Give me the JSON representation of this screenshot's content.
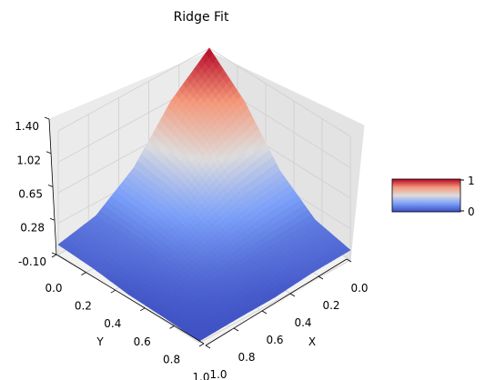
{
  "chart_data": {
    "type": "surface",
    "title": "Ridge Fit",
    "xlabel": "X",
    "ylabel": "Y",
    "zlabel": "",
    "xlim": [
      0.0,
      1.0
    ],
    "ylim": [
      0.0,
      1.0
    ],
    "zlim": [
      -0.1,
      1.4
    ],
    "x_ticks": [
      "0.0",
      "0.2",
      "0.4",
      "0.6",
      "0.8",
      "1.0"
    ],
    "y_ticks": [
      "0.0",
      "0.2",
      "0.4",
      "0.6",
      "0.8",
      "1.0"
    ],
    "z_ticks": [
      "-0.10",
      "0.28",
      "0.65",
      "1.02",
      "1.40"
    ],
    "colormap": "coolwarm",
    "grid": true,
    "colorbar": {
      "placement": "right",
      "ticks": [
        "0",
        "1"
      ]
    },
    "z_values_approx": {
      "grid_xy": [
        0.0,
        0.25,
        0.5,
        0.75,
        1.0
      ],
      "z": [
        [
          1.4,
          1.02,
          0.45,
          0.12,
          0.02
        ],
        [
          1.02,
          0.78,
          0.38,
          0.1,
          0.0
        ],
        [
          0.45,
          0.38,
          0.22,
          0.06,
          -0.05
        ],
        [
          0.12,
          0.1,
          0.06,
          0.0,
          -0.06
        ],
        [
          0.02,
          0.0,
          -0.05,
          -0.06,
          -0.08
        ]
      ]
    },
    "peak": {
      "x": 0.0,
      "y": 0.0,
      "z": 1.4
    },
    "minimum": {
      "x": 0.85,
      "y": 0.85,
      "z": -0.08
    }
  }
}
